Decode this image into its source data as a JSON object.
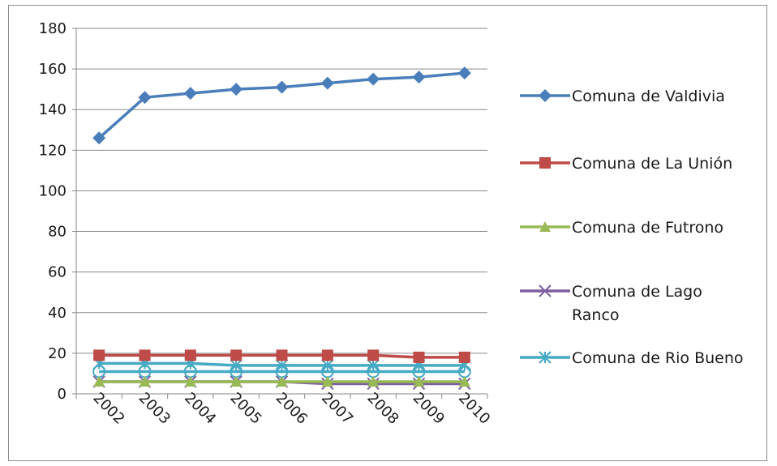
{
  "chart_data": {
    "type": "line",
    "title": "",
    "xlabel": "",
    "ylabel": "",
    "ylim": [
      0,
      180
    ],
    "y_ticks": [
      0,
      20,
      40,
      60,
      80,
      100,
      120,
      140,
      160,
      180
    ],
    "categories": [
      "2002",
      "2003",
      "2004",
      "2005",
      "2006",
      "2007",
      "2008",
      "2009",
      "2010"
    ],
    "grid": "horizontal",
    "legend_position": "right",
    "series": [
      {
        "name": "Comuna de Valdivia",
        "color": "#4a7ebb",
        "marker": "diamond",
        "values": [
          126,
          146,
          148,
          150,
          151,
          153,
          155,
          156,
          158
        ]
      },
      {
        "name": "Comuna de La Unión",
        "color": "#be4b48",
        "marker": "square",
        "values": [
          19,
          19,
          19,
          19,
          19,
          19,
          19,
          18,
          18
        ]
      },
      {
        "name": "Comuna de Futrono",
        "color": "#98b954",
        "marker": "triangle",
        "values": [
          6,
          6,
          6,
          6,
          6,
          6,
          6,
          6,
          6
        ]
      },
      {
        "name": "Comuna de Lago Ranco",
        "color": "#7d5fa0",
        "marker": "x",
        "values": [
          6,
          6,
          6,
          6,
          6,
          5,
          5,
          5,
          5
        ]
      },
      {
        "name": "Comuna de Rio Bueno",
        "color": "#46aac5",
        "marker": "star",
        "values": [
          15,
          15,
          15,
          14,
          14,
          14,
          14,
          14,
          14
        ]
      },
      {
        "name": "",
        "color": "#46aac5",
        "marker": "circle",
        "values": [
          11,
          11,
          11,
          11,
          11,
          11,
          11,
          11,
          11
        ]
      }
    ]
  }
}
